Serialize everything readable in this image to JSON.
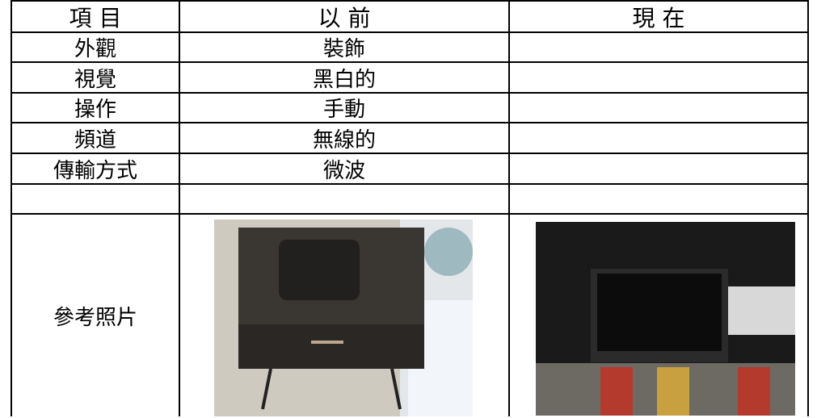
{
  "table": {
    "header": [
      "項 目",
      "以 前",
      "現 在"
    ],
    "rows": [
      {
        "item": "外觀",
        "before": "裝飾"
      },
      {
        "item": "視覺",
        "before": "黑白的"
      },
      {
        "item": "操作",
        "before": "手動"
      },
      {
        "item": "頻道",
        "before": "無線的"
      },
      {
        "item": "傳輸方式",
        "before": "微波"
      }
    ],
    "photo_row": {
      "item": "參考照片"
    }
  }
}
